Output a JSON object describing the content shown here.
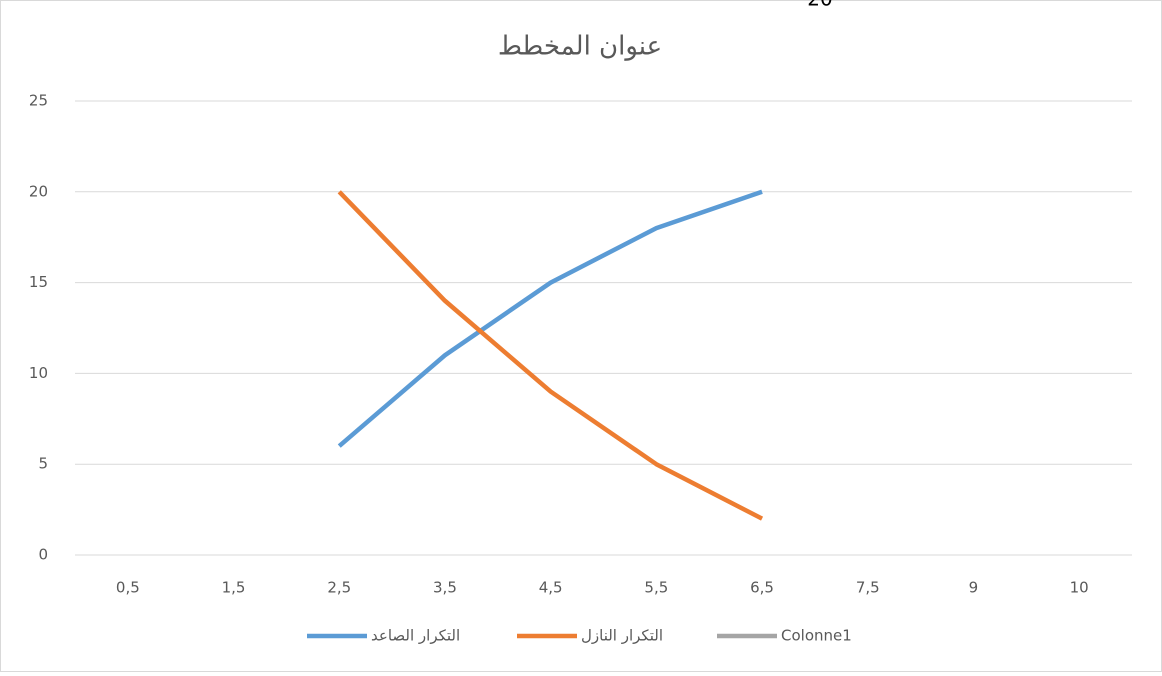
{
  "chart_data": {
    "type": "line",
    "title": "عنوان المخطط",
    "annotations": [
      "20"
    ],
    "categories": [
      "0,5",
      "1,5",
      "2,5",
      "3,5",
      "4,5",
      "5,5",
      "6,5",
      "7,5",
      "9",
      "10"
    ],
    "series": [
      {
        "name": "التكرار الصاعد",
        "color": "#5b9bd5",
        "values": [
          null,
          null,
          6,
          11,
          15,
          18,
          20,
          null,
          null,
          null
        ]
      },
      {
        "name": "التكرار النازل",
        "color": "#ed7d31",
        "values": [
          null,
          null,
          20,
          14,
          9,
          5,
          2,
          null,
          null,
          null
        ]
      },
      {
        "name": "Colonne1",
        "color": "#a5a5a5",
        "values": [
          null,
          null,
          null,
          null,
          null,
          null,
          null,
          null,
          null,
          null
        ]
      }
    ],
    "ylim": [
      0,
      25
    ],
    "yticks": [
      0,
      5,
      10,
      15,
      20,
      25
    ],
    "grid": true,
    "legend": "bottom"
  }
}
